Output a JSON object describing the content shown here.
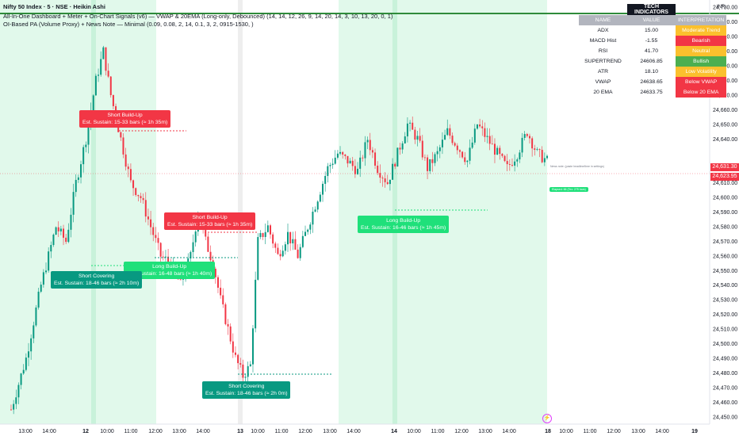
{
  "header": {
    "symbol_line": "Nifty 50 Index · 5 · NSE · Heikin Ashi",
    "indicator1": "All-In-One Dashboard + Meter + On-Chart Signals (v6) — VWAP & 20EMA (Long-only, Debounced) (14, 14, 12, 26, 9, 14, 20, 14, 3, 10, 13, 20, 0, 1)",
    "indicator2": "OI-Based PA (Volume Proxy) + News Note — Minimal (0.09, 0.08, 2, 14, 0.1, 3, 2, 0915-1530, )"
  },
  "currency": "INR",
  "price_axis": [
    "24,730.00",
    "24,720.00",
    "24,710.00",
    "24,700.00",
    "24,690.00",
    "24,680.00",
    "24,670.00",
    "24,660.00",
    "24,650.00",
    "24,640.00",
    "24,620.00",
    "24,610.00",
    "24,600.00",
    "24,590.00",
    "24,580.00",
    "24,570.00",
    "24,560.00",
    "24,550.00",
    "24,540.00",
    "24,530.00",
    "24,520.00",
    "24,510.00",
    "24,500.00",
    "24,490.00",
    "24,480.00",
    "24,470.00",
    "24,460.00",
    "24,450.00"
  ],
  "price_tags": [
    {
      "text": "24,631.30",
      "color": "#f23645"
    },
    {
      "text": "24,623.95",
      "color": "#f23645"
    }
  ],
  "time_axis": [
    {
      "t": "13:00",
      "day": false
    },
    {
      "t": "14:00",
      "day": false
    },
    {
      "t": "12",
      "day": true
    },
    {
      "t": "10:00",
      "day": false
    },
    {
      "t": "11:00",
      "day": false
    },
    {
      "t": "12:00",
      "day": false
    },
    {
      "t": "13:00",
      "day": false
    },
    {
      "t": "14:00",
      "day": false
    },
    {
      "t": "13",
      "day": true
    },
    {
      "t": "10:00",
      "day": false
    },
    {
      "t": "11:00",
      "day": false
    },
    {
      "t": "12:00",
      "day": false
    },
    {
      "t": "13:00",
      "day": false
    },
    {
      "t": "14:00",
      "day": false
    },
    {
      "t": "14",
      "day": true
    },
    {
      "t": "10:00",
      "day": false
    },
    {
      "t": "11:00",
      "day": false
    },
    {
      "t": "12:00",
      "day": false
    },
    {
      "t": "13:00",
      "day": false
    },
    {
      "t": "14:00",
      "day": false
    },
    {
      "t": "18",
      "day": true
    },
    {
      "t": "10:00",
      "day": false
    },
    {
      "t": "11:00",
      "day": false
    },
    {
      "t": "12:00",
      "day": false
    },
    {
      "t": "13:00",
      "day": false
    },
    {
      "t": "14:00",
      "day": false
    },
    {
      "t": "19",
      "day": true
    }
  ],
  "table": {
    "title": "TECH INDICATORS",
    "headers": [
      "NAME",
      "VALUE",
      "INTERPRETATION"
    ],
    "rows": [
      {
        "name": "ADX",
        "value": "15.00",
        "interp": "Moderate Trend",
        "color": "#fbc02d"
      },
      {
        "name": "MACD Hist",
        "value": "-1.55",
        "interp": "Bearish",
        "color": "#f23645"
      },
      {
        "name": "RSI",
        "value": "41.70",
        "interp": "Neutral",
        "color": "#fbc02d"
      },
      {
        "name": "SUPERTREND",
        "value": "24606.85",
        "interp": "Bullish",
        "color": "#4caf50"
      },
      {
        "name": "ATR",
        "value": "18.10",
        "interp": "Low Volatility",
        "color": "#fbc02d"
      },
      {
        "name": "VWAP",
        "value": "24638.65",
        "interp": "Below VWAP",
        "color": "#f23645"
      },
      {
        "name": "20 EMA",
        "value": "24633.75",
        "interp": "Below 20 EMA",
        "color": "#f23645"
      }
    ]
  },
  "labels": {
    "sb1": {
      "l1": "Short Build-Up",
      "l2": "Est. Sustain: 15-33 bars (≈ 1h 35m)"
    },
    "sb2": {
      "l1": "Short Build-Up",
      "l2": "Est. Sustain: 15-33 bars (≈ 1h 35m)"
    },
    "lb1": {
      "l1": "Long Build-Up",
      "l2": "Est. Sustain: 16-48 bars (≈ 1h 40m)"
    },
    "sc1": {
      "l1": "Short Covering",
      "l2": "Est. Sustain: 18-46 bars (≈ 2h 10m)"
    },
    "lb2": {
      "l1": "Long Build-Up",
      "l2": "Est. Sustain: 16-46 bars (≈ 1h 45m)"
    },
    "sc2": {
      "l1": "Short Covering",
      "l2": "Est. Sustain: 18-46 bars (≈ 2h 0m)"
    }
  },
  "news_note": "News note: (paste headline/time in settings)",
  "elapsed": "Elapsed: 66 (Tex: 275 bars)",
  "chart_data": {
    "type": "candlestick",
    "ylim": [
      24445,
      24735
    ],
    "series_points": [
      [
        0,
        24455
      ],
      [
        6,
        24490
      ],
      [
        12,
        24540
      ],
      [
        18,
        24580
      ],
      [
        22,
        24570
      ],
      [
        26,
        24610
      ],
      [
        30,
        24640
      ],
      [
        34,
        24680
      ],
      [
        37,
        24700
      ],
      [
        40,
        24670
      ],
      [
        44,
        24640
      ],
      [
        48,
        24610
      ],
      [
        52,
        24600
      ],
      [
        56,
        24580
      ],
      [
        60,
        24560
      ],
      [
        64,
        24555
      ],
      [
        68,
        24540
      ],
      [
        72,
        24560
      ],
      [
        75,
        24590
      ],
      [
        78,
        24570
      ],
      [
        81,
        24555
      ],
      [
        84,
        24530
      ],
      [
        87,
        24510
      ],
      [
        90,
        24490
      ],
      [
        93,
        24478
      ],
      [
        96,
        24485
      ],
      [
        99,
        24570
      ],
      [
        103,
        24580
      ],
      [
        107,
        24560
      ],
      [
        111,
        24575
      ],
      [
        115,
        24560
      ],
      [
        119,
        24580
      ],
      [
        123,
        24600
      ],
      [
        127,
        24620
      ],
      [
        131,
        24630
      ],
      [
        135,
        24625
      ],
      [
        139,
        24618
      ],
      [
        143,
        24640
      ],
      [
        147,
        24620
      ],
      [
        151,
        24610
      ],
      [
        155,
        24630
      ],
      [
        159,
        24650
      ],
      [
        163,
        24640
      ],
      [
        167,
        24620
      ],
      [
        171,
        24630
      ],
      [
        175,
        24645
      ],
      [
        179,
        24635
      ],
      [
        183,
        24625
      ],
      [
        187,
        24650
      ],
      [
        191,
        24640
      ],
      [
        195,
        24630
      ],
      [
        199,
        24620
      ],
      [
        203,
        24630
      ],
      [
        207,
        24645
      ],
      [
        211,
        24630
      ],
      [
        215,
        24625
      ]
    ]
  }
}
